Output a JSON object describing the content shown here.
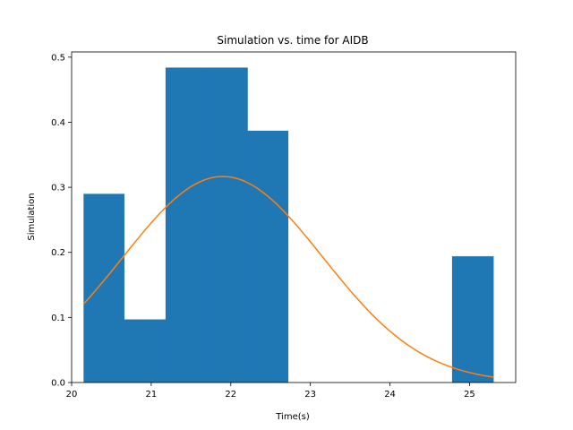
{
  "chart_data": {
    "type": "bar",
    "title": "Simulation vs. time for AIDB",
    "xlabel": "Time(s)",
    "ylabel": "Simulation",
    "xlim": [
      20.0,
      25.58
    ],
    "ylim": [
      0.0,
      0.508
    ],
    "x_ticks": [
      20,
      21,
      22,
      23,
      24,
      25
    ],
    "y_ticks": [
      0.0,
      0.1,
      0.2,
      0.3,
      0.4,
      0.5
    ],
    "x_tick_labels": [
      "20",
      "21",
      "22",
      "23",
      "24",
      "25"
    ],
    "y_tick_labels": [
      "0.0",
      "0.1",
      "0.2",
      "0.3",
      "0.4",
      "0.5"
    ],
    "grid": false,
    "bars": [
      {
        "x0": 20.15,
        "x1": 20.66,
        "value": 0.29
      },
      {
        "x0": 20.66,
        "x1": 21.18,
        "value": 0.097
      },
      {
        "x0": 21.18,
        "x1": 21.69,
        "value": 0.484
      },
      {
        "x0": 21.69,
        "x1": 22.21,
        "value": 0.484
      },
      {
        "x0": 22.21,
        "x1": 22.72,
        "value": 0.387
      },
      {
        "x0": 22.72,
        "x1": 23.24,
        "value": 0.0
      },
      {
        "x0": 23.24,
        "x1": 23.75,
        "value": 0.0
      },
      {
        "x0": 23.75,
        "x1": 24.27,
        "value": 0.0
      },
      {
        "x0": 24.27,
        "x1": 24.78,
        "value": 0.0
      },
      {
        "x0": 24.78,
        "x1": 25.3,
        "value": 0.194
      }
    ],
    "curve": {
      "type": "normal-pdf",
      "mean": 21.9,
      "std": 1.26,
      "x_range": [
        20.15,
        25.3
      ]
    },
    "colors": {
      "bars": "#1f77b4",
      "curve": "#ff7f0e"
    }
  }
}
